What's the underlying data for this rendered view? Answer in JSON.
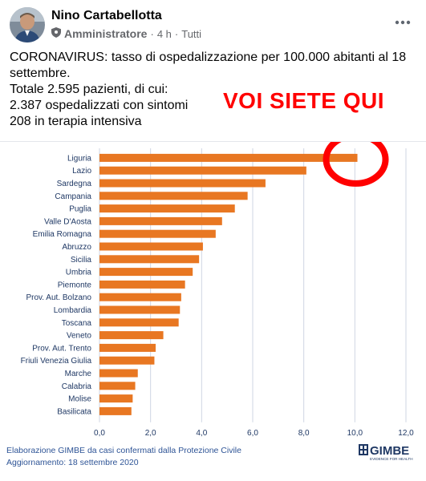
{
  "post": {
    "author": "Nino Cartabellotta",
    "role": "Amministratore",
    "separator": "·",
    "time": "4 h",
    "audience_sep": "·",
    "audience": "Tutti",
    "text_lines": [
      "CORONAVIRUS: tasso di ospedalizzazione per 100.000 abitanti al 18",
      "settembre.",
      "Totale 2.595 pazienti, di cui:",
      "2.387 ospedalizzati con sintomi",
      "208 in terapia intensiva"
    ],
    "overlay_text": "VOI SIETE QUI",
    "icons": {
      "admin": "shield-icon",
      "more": "more-options-icon"
    }
  },
  "chart_data": {
    "type": "bar",
    "orientation": "horizontal",
    "categories": [
      "Liguria",
      "Lazio",
      "Sardegna",
      "Campania",
      "Puglia",
      "Valle D'Aosta",
      "Emilia Romagna",
      "Abruzzo",
      "Sicilia",
      "Umbria",
      "Piemonte",
      "Prov. Aut. Bolzano",
      "Lombardia",
      "Toscana",
      "Veneto",
      "Prov. Aut. Trento",
      "Friuli Venezia Giulia",
      "Marche",
      "Calabria",
      "Molise",
      "Basilicata"
    ],
    "values": [
      10.1,
      8.1,
      6.5,
      5.8,
      5.3,
      4.8,
      4.55,
      4.05,
      3.9,
      3.65,
      3.35,
      3.2,
      3.15,
      3.1,
      2.5,
      2.2,
      2.15,
      1.5,
      1.4,
      1.3,
      1.25
    ],
    "xlim": [
      0,
      12
    ],
    "xticks": [
      "0,0",
      "2,0",
      "4,0",
      "6,0",
      "8,0",
      "10,0",
      "12,0"
    ],
    "grid": true,
    "bar_color": "#e87722",
    "highlight_color": "#ff0000"
  },
  "footer": {
    "source_line": "Elaborazione GIMBE da casi confermati dalla Protezione Civile",
    "update_line": "Aggiornamento:  18 settembre 2020",
    "logo_text": "GIMBE",
    "logo_tagline": "EVIDENCE FOR HEALTH"
  }
}
